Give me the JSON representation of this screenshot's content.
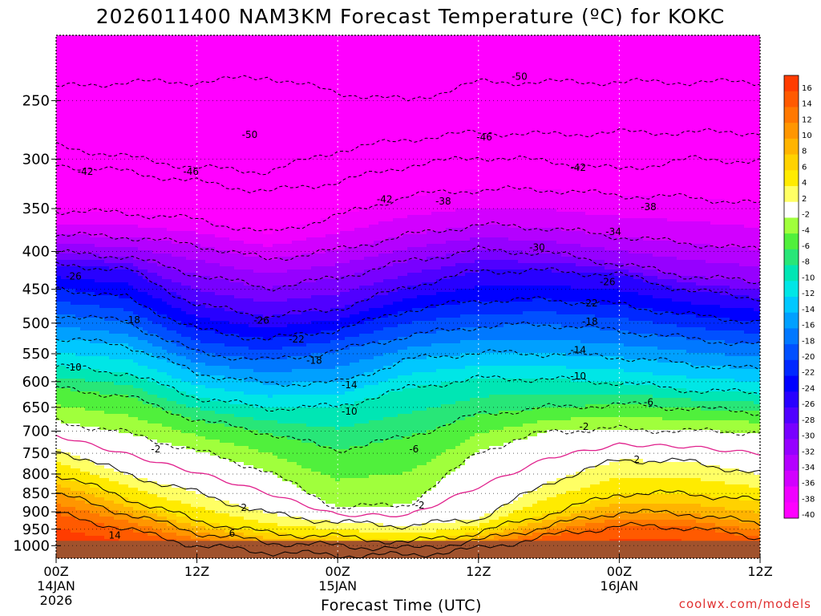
{
  "chart_data": {
    "type": "heatmap",
    "title": "2026011400 NAM3KM Forecast Temperature (ºC) for KOKC",
    "xlabel": "Forecast Time (UTC)",
    "ylabel": "",
    "source": "coolwx.com/models",
    "x_ticks": [
      {
        "hours": 0,
        "lines": [
          "00Z",
          "14JAN",
          "2026"
        ]
      },
      {
        "hours": 12,
        "lines": [
          "12Z"
        ]
      },
      {
        "hours": 24,
        "lines": [
          "00Z",
          "15JAN"
        ]
      },
      {
        "hours": 36,
        "lines": [
          "12Z"
        ]
      },
      {
        "hours": 48,
        "lines": [
          "00Z",
          "16JAN"
        ]
      },
      {
        "hours": 60,
        "lines": [
          "12Z"
        ]
      }
    ],
    "x_range_hours": [
      0,
      60
    ],
    "y_ticks": [
      250,
      300,
      350,
      400,
      450,
      500,
      550,
      600,
      650,
      700,
      750,
      800,
      850,
      900,
      950,
      1000
    ],
    "y_range_hpa": [
      200,
      1040
    ],
    "y_scale": "log-pressure (inverted)",
    "colorbar": {
      "labels": [
        "16",
        "14",
        "12",
        "10",
        "8",
        "6",
        "4",
        "2",
        "-2",
        "-4",
        "-6",
        "-8",
        "-10",
        "-12",
        "-14",
        "-16",
        "-18",
        "-20",
        "-22",
        "-24",
        "-26",
        "-28",
        "-30",
        "-32",
        "-34",
        "-36",
        "-38",
        "-40"
      ],
      "colors": [
        "#ff3c00",
        "#ff5a00",
        "#ff7800",
        "#ff9600",
        "#ffb400",
        "#ffd200",
        "#ffeb00",
        "#ffff64",
        "#ffffff",
        "#a0ff3c",
        "#50f03c",
        "#28e678",
        "#00e6b4",
        "#00e6e6",
        "#00c8ff",
        "#00a0ff",
        "#0078ff",
        "#0050ff",
        "#0028ff",
        "#0000ff",
        "#2800ff",
        "#5000ff",
        "#7800ff",
        "#9600ff",
        "#b400ff",
        "#d200ff",
        "#f000ff",
        "#ff00ff"
      ]
    },
    "time_hours": [
      0,
      6,
      12,
      18,
      24,
      30,
      36,
      42,
      48,
      54,
      60
    ],
    "isotherm_pressure_hpa": {
      "-50": [
        240,
        236,
        236,
        232,
        244,
        250,
        236,
        236,
        236,
        236,
        236
      ],
      "-46": [
        288,
        298,
        308,
        312,
        292,
        282,
        276,
        278,
        276,
        276,
        276
      ],
      "-42": [
        305,
        312,
        322,
        332,
        322,
        306,
        298,
        302,
        310,
        300,
        302
      ],
      "-38": [
        352,
        355,
        362,
        378,
        358,
        336,
        330,
        330,
        336,
        338,
        345
      ],
      "-34": [
        380,
        382,
        392,
        410,
        398,
        380,
        368,
        372,
        382,
        390,
        398
      ],
      "-30": [
        402,
        406,
        430,
        448,
        434,
        412,
        398,
        402,
        416,
        432,
        440
      ],
      "-26": [
        418,
        422,
        472,
        490,
        478,
        446,
        425,
        425,
        430,
        452,
        462
      ],
      "-22": [
        448,
        462,
        510,
        526,
        510,
        480,
        466,
        465,
        472,
        488,
        498
      ],
      "-18": [
        486,
        498,
        548,
        562,
        545,
        520,
        505,
        502,
        512,
        525,
        535
      ],
      "-14": [
        525,
        535,
        584,
        604,
        602,
        560,
        548,
        550,
        556,
        568,
        578
      ],
      "-10": [
        572,
        584,
        630,
        652,
        648,
        612,
        594,
        595,
        602,
        616,
        622
      ],
      "-6": [
        612,
        628,
        676,
        704,
        742,
        712,
        664,
        650,
        644,
        652,
        660
      ],
      "-2": [
        678,
        704,
        744,
        792,
        888,
        880,
        745,
        700,
        695,
        700,
        702
      ],
      "2": [
        740,
        800,
        848,
        905,
        930,
        940,
        920,
        820,
        765,
        770,
        800
      ],
      "6": [
        800,
        862,
        925,
        962,
        972,
        990,
        960,
        905,
        850,
        850,
        870
      ],
      "10": [
        850,
        905,
        960,
        990,
        1000,
        1010,
        985,
        940,
        900,
        905,
        935
      ],
      "14": [
        905,
        950,
        1000,
        1020,
        1030,
        1030,
        1010,
        970,
        940,
        945,
        975
      ]
    },
    "contour_labels": [
      {
        "text": "-50",
        "h": 39.5,
        "p": 232
      },
      {
        "text": "-50",
        "h": 16.5,
        "p": 278
      },
      {
        "text": "-46",
        "h": 11.5,
        "p": 312
      },
      {
        "text": "-46",
        "h": 36.5,
        "p": 280
      },
      {
        "text": "-42",
        "h": 2.5,
        "p": 312
      },
      {
        "text": "-42",
        "h": 28.0,
        "p": 340
      },
      {
        "text": "-42",
        "h": 44.5,
        "p": 308
      },
      {
        "text": "-38",
        "h": 33.0,
        "p": 342
      },
      {
        "text": "-38",
        "h": 50.5,
        "p": 348
      },
      {
        "text": "-34",
        "h": 47.5,
        "p": 376
      },
      {
        "text": "-30",
        "h": 41.0,
        "p": 395
      },
      {
        "text": "-26",
        "h": 1.5,
        "p": 432
      },
      {
        "text": "-26",
        "h": 17.5,
        "p": 496
      },
      {
        "text": "-26",
        "h": 47.0,
        "p": 440
      },
      {
        "text": "-22",
        "h": 20.5,
        "p": 526
      },
      {
        "text": "-22",
        "h": 45.5,
        "p": 470
      },
      {
        "text": "-18",
        "h": 6.5,
        "p": 495
      },
      {
        "text": "-18",
        "h": 22.0,
        "p": 562
      },
      {
        "text": "-18",
        "h": 45.5,
        "p": 498
      },
      {
        "text": "-14",
        "h": 25.0,
        "p": 606
      },
      {
        "text": "-14",
        "h": 44.5,
        "p": 544
      },
      {
        "text": "-10",
        "h": 1.5,
        "p": 574
      },
      {
        "text": "-10",
        "h": 25.0,
        "p": 658
      },
      {
        "text": "-10",
        "h": 44.5,
        "p": 590
      },
      {
        "text": "-6",
        "h": 30.5,
        "p": 740
      },
      {
        "text": "-6",
        "h": 50.5,
        "p": 640
      },
      {
        "text": "-2",
        "h": 8.5,
        "p": 740
      },
      {
        "text": "-2",
        "h": 31.0,
        "p": 882
      },
      {
        "text": "-2",
        "h": 45.0,
        "p": 690
      },
      {
        "text": "2",
        "h": 16.0,
        "p": 888
      },
      {
        "text": "2",
        "h": 49.5,
        "p": 765
      },
      {
        "text": "6",
        "h": 15.0,
        "p": 962
      },
      {
        "text": "14",
        "h": 5.0,
        "p": 968
      }
    ]
  }
}
